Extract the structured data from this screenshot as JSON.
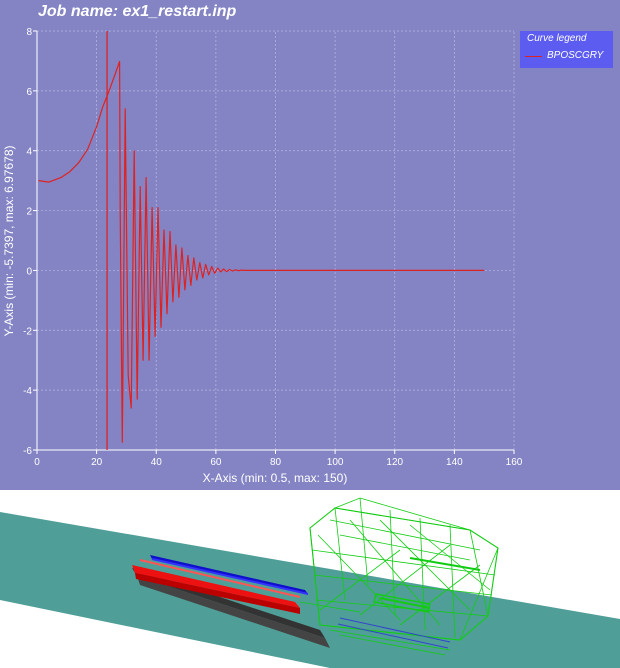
{
  "job": {
    "prefix": "Job name: ",
    "name": "ex1_restart.inp"
  },
  "legend": {
    "title": "Curve legend",
    "entries": [
      {
        "label": "BPOSCGRY",
        "color": "#dd2222"
      }
    ]
  },
  "colors": {
    "panel_bg": "#8484c4",
    "axis": "#ffffff",
    "grid": "#b8b8e4",
    "curve": "#dd2222",
    "cursor_line": "#dd2222",
    "legend_bg": "#5c5cf0",
    "floor": "#4f9f98",
    "beam_red": "#ee1111",
    "beam_blue": "#1010cc",
    "beam_dark": "#333333",
    "mesh_green": "#11cc11"
  },
  "chart_data": {
    "type": "line",
    "xlabel": "X-Axis (min: 0.5, max: 150)",
    "ylabel": "Y-Axis (min: -5.7397, max: 6.97678)",
    "xlim": [
      0,
      160
    ],
    "ylim": [
      -6,
      8
    ],
    "xticks": [
      0,
      20,
      40,
      60,
      80,
      100,
      120,
      140,
      160
    ],
    "yticks": [
      -6,
      -4,
      -2,
      0,
      2,
      4,
      6,
      8
    ],
    "grid": true,
    "legend_position": "top-right",
    "vertical_marker_x": 23.5,
    "series": [
      {
        "name": "BPOSCGRY",
        "x": [
          0.5,
          4,
          8,
          11,
          14,
          17,
          20,
          22,
          24,
          26,
          27.7,
          27.9,
          28.6,
          29.6,
          30.6,
          31.6,
          32.6,
          33.6,
          34.6,
          35.6,
          36.6,
          37.6,
          38.6,
          39.6,
          40.6,
          41.6,
          42.6,
          43.6,
          44.6,
          45.6,
          46.6,
          47.6,
          48.6,
          49.6,
          50.6,
          51.6,
          52.6,
          53.6,
          54.6,
          55.6,
          56.6,
          57.6,
          58.6,
          59.6,
          60.6,
          61.6,
          62.6,
          63.6,
          64.6,
          65.6,
          66.6,
          67.6,
          68.6,
          69.6,
          70.6,
          75,
          80,
          100,
          120,
          150
        ],
        "y": [
          3.0,
          2.95,
          3.1,
          3.3,
          3.6,
          4.05,
          4.8,
          5.45,
          5.95,
          6.5,
          6.98,
          2.0,
          -5.74,
          5.4,
          -3.5,
          -4.6,
          4.0,
          -4.3,
          2.8,
          -3.0,
          3.1,
          -3.0,
          2.1,
          -2.2,
          2.1,
          -1.9,
          1.35,
          -1.45,
          1.3,
          -1.05,
          0.85,
          -0.9,
          0.75,
          -0.65,
          0.5,
          -0.5,
          0.42,
          -0.32,
          0.26,
          -0.25,
          0.2,
          -0.15,
          0.13,
          -0.1,
          0.08,
          -0.05,
          0.05,
          -0.04,
          0.03,
          -0.02,
          0.02,
          -0.01,
          0.01,
          0.0,
          0.0,
          0.0,
          0.0,
          0.0,
          0.0,
          0.0
        ]
      }
    ]
  }
}
